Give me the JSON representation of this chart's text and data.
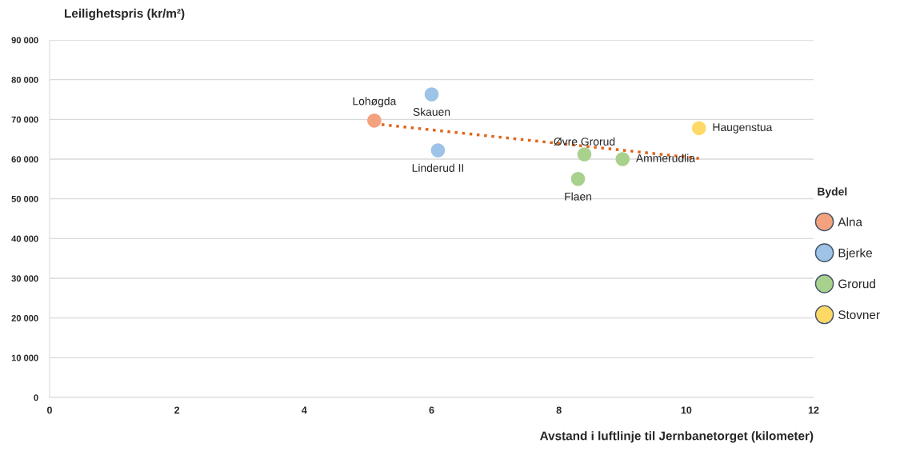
{
  "chart_data": {
    "type": "scatter",
    "xlabel": "Avstand i luftlinje til Jernbanetorget (kilometer)",
    "ylabel": "Leilighetspris (kr/m²)",
    "legend_title": "Bydel",
    "series": [
      {
        "name": "Alna",
        "color": "#f4a27e",
        "x": [
          5.1
        ],
        "values": [
          69700
        ]
      },
      {
        "name": "Bjerke",
        "color": "#9dc3e6",
        "x": [
          6.0,
          6.1
        ],
        "values": [
          76300,
          62200
        ]
      },
      {
        "name": "Grorud",
        "color": "#a9d18e",
        "x": [
          8.4,
          8.3,
          9.0
        ],
        "values": [
          61200,
          55000,
          60000
        ]
      },
      {
        "name": "Stovner",
        "color": "#ffd966",
        "x": [
          10.2
        ],
        "values": [
          67800
        ]
      },
      {
        "type": "line",
        "color": "#e2631a",
        "line_style": "dotted",
        "marker": "none",
        "x": [
          5.1,
          10.2
        ],
        "values": [
          68900,
          60200
        ]
      }
    ],
    "annotations": [
      {
        "text": "Lohøgda",
        "x": 5.1,
        "y": 69700
      },
      {
        "text": "Skauen",
        "x": 6.0,
        "y": 76300
      },
      {
        "text": "Linderud II",
        "x": 6.1,
        "y": 62200
      },
      {
        "text": "Øvre Grorud",
        "x": 8.4,
        "y": 61200
      },
      {
        "text": "Flaen",
        "x": 8.3,
        "y": 55000
      },
      {
        "text": "Ammerudlia",
        "x": 9.0,
        "y": 60000
      },
      {
        "text": "Haugenstua",
        "x": 10.2,
        "y": 67800
      }
    ],
    "marker": "circle",
    "xlim": [
      0,
      12
    ],
    "xticks": [
      0,
      2,
      4,
      6,
      8,
      10,
      12
    ],
    "ylim": [
      0,
      90000
    ],
    "yticks": [
      0,
      {
        "value": 10000,
        "label": "10 000"
      },
      {
        "value": 20000,
        "label": "20 000"
      },
      {
        "value": 30000,
        "label": "30 000"
      },
      {
        "value": 40000,
        "label": "40 000"
      },
      {
        "value": 50000,
        "label": "50 000"
      },
      {
        "value": 60000,
        "label": "60 000"
      },
      {
        "value": 70000,
        "label": "70 000"
      },
      {
        "value": 80000,
        "label": "80 000"
      },
      {
        "value": 90000,
        "label": "90 000"
      }
    ],
    "grid": "y",
    "legend": "right"
  }
}
